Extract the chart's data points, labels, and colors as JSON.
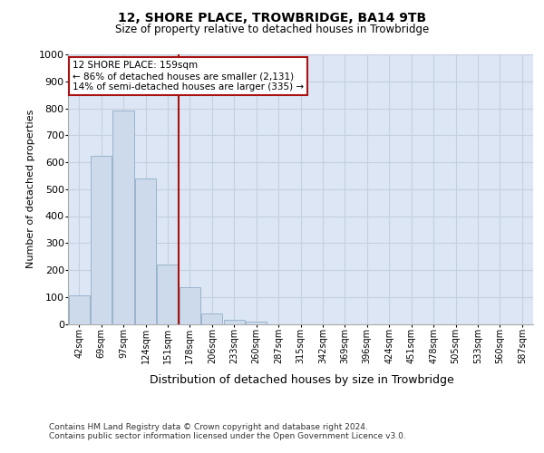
{
  "title": "12, SHORE PLACE, TROWBRIDGE, BA14 9TB",
  "subtitle": "Size of property relative to detached houses in Trowbridge",
  "xlabel": "Distribution of detached houses by size in Trowbridge",
  "ylabel": "Number of detached properties",
  "footer_line1": "Contains HM Land Registry data © Crown copyright and database right 2024.",
  "footer_line2": "Contains public sector information licensed under the Open Government Licence v3.0.",
  "bar_color": "#cddaeb",
  "bar_edge_color": "#9ab4cc",
  "vline_color": "#aa1111",
  "vline_pos": 4.5,
  "annotation_text": "12 SHORE PLACE: 159sqm\n← 86% of detached houses are smaller (2,131)\n14% of semi-detached houses are larger (335) →",
  "annotation_box_color": "#ffffff",
  "annotation_box_edge": "#aa1111",
  "grid_color": "#c5d0e0",
  "background_color": "#dce6f4",
  "categories": [
    "42sqm",
    "69sqm",
    "97sqm",
    "124sqm",
    "151sqm",
    "178sqm",
    "206sqm",
    "233sqm",
    "260sqm",
    "287sqm",
    "315sqm",
    "342sqm",
    "369sqm",
    "396sqm",
    "424sqm",
    "451sqm",
    "478sqm",
    "505sqm",
    "533sqm",
    "560sqm",
    "587sqm"
  ],
  "values": [
    105,
    625,
    790,
    540,
    220,
    135,
    40,
    15,
    10,
    0,
    0,
    0,
    0,
    0,
    0,
    0,
    0,
    0,
    0,
    0,
    0
  ],
  "ylim": [
    0,
    1000
  ],
  "yticks": [
    0,
    100,
    200,
    300,
    400,
    500,
    600,
    700,
    800,
    900,
    1000
  ],
  "title_fontsize": 10,
  "subtitle_fontsize": 8.5,
  "ylabel_fontsize": 8,
  "xlabel_fontsize": 9,
  "tick_fontsize": 7,
  "footer_fontsize": 6.5,
  "annotation_fontsize": 7.5
}
